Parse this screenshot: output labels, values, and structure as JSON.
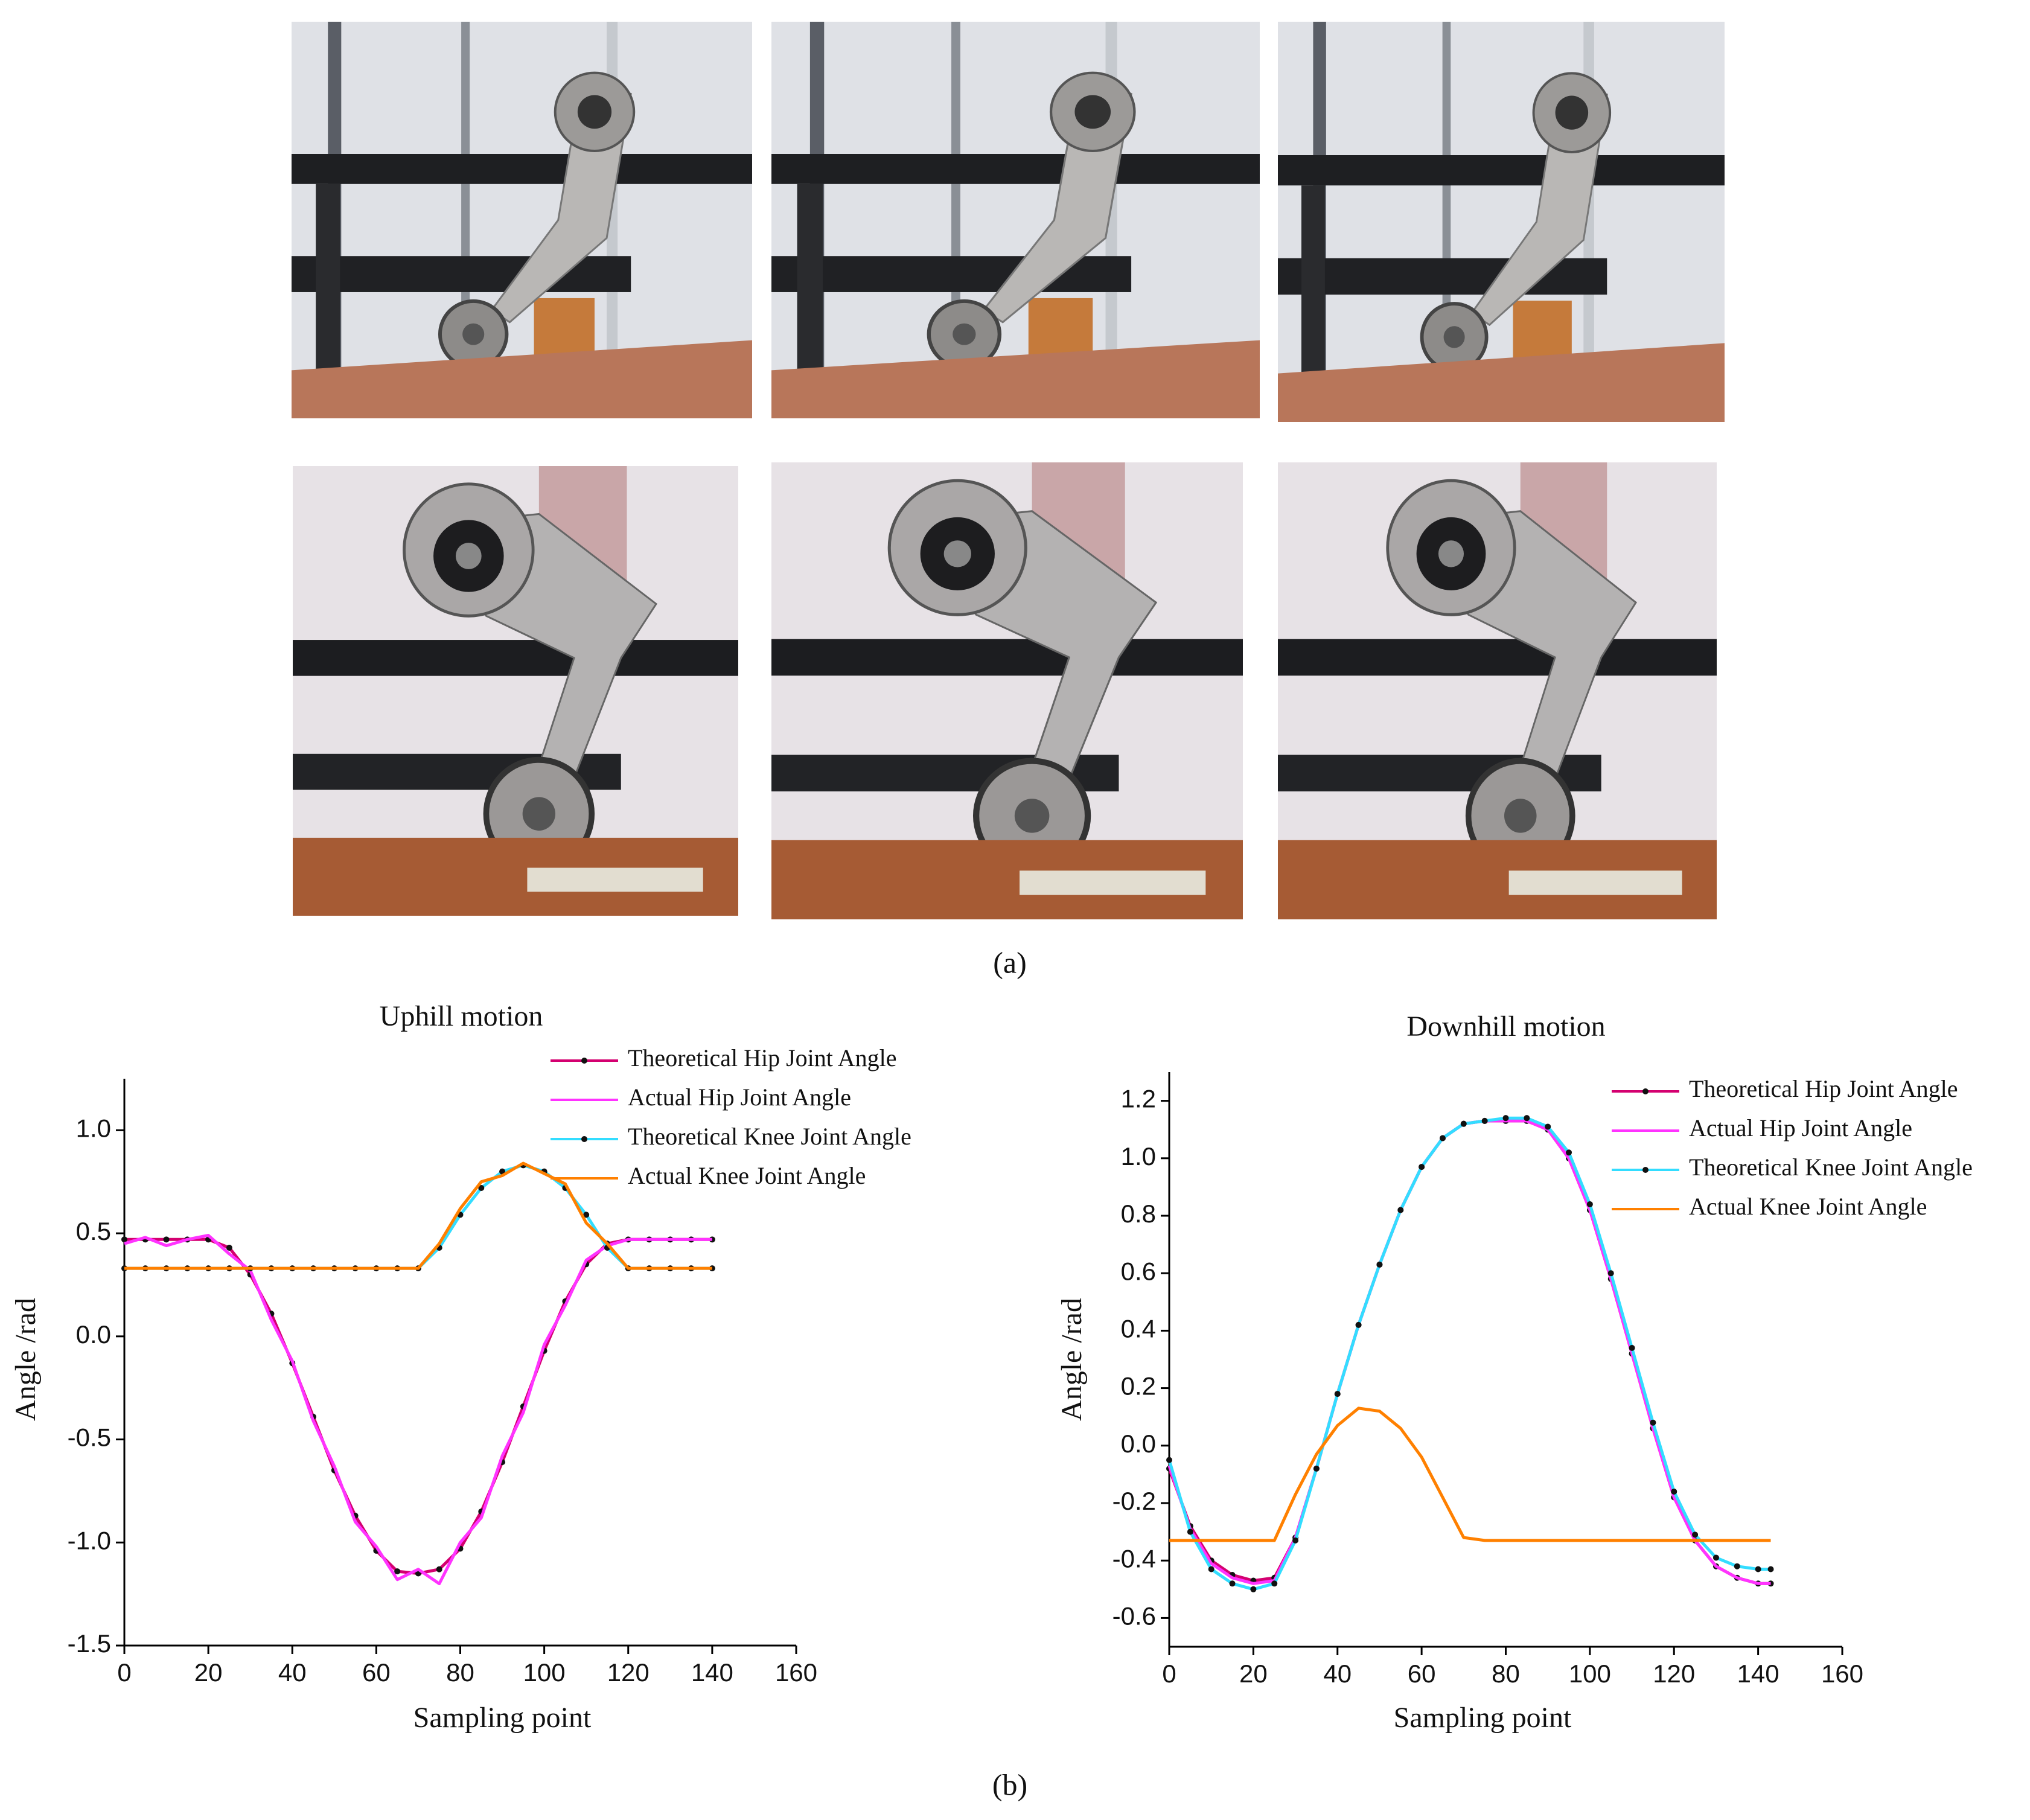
{
  "figure": {
    "label_a": "(a)",
    "label_b": "(b)"
  },
  "chart_data": [
    {
      "type": "line",
      "title": "Uphill motion",
      "x_label": "Sampling point",
      "y_label": "Angle /rad",
      "xlim": [
        0,
        160
      ],
      "xticks": [
        0,
        20,
        40,
        60,
        80,
        100,
        120,
        140,
        160
      ],
      "ylim": [
        -1.5,
        1.25
      ],
      "yticks": [
        -1.5,
        {
          "value": -1,
          "label": "-1.0"
        },
        -0.5,
        {
          "value": 0,
          "label": "0.0"
        },
        0.5,
        {
          "value": 1,
          "label": "1.0"
        }
      ],
      "grid": false,
      "legend": "upper right",
      "marker_color": "#111111",
      "x": [
        0,
        5,
        10,
        15,
        20,
        25,
        30,
        35,
        40,
        45,
        50,
        55,
        60,
        65,
        70,
        75,
        80,
        85,
        90,
        95,
        100,
        105,
        110,
        115,
        120,
        125,
        130,
        135,
        140
      ],
      "series": [
        {
          "name": "Theoretical Hip Joint Angle",
          "color": "#d40070",
          "marker": "circle",
          "values": [
            0.47,
            0.47,
            0.47,
            0.47,
            0.47,
            0.43,
            0.3,
            0.11,
            -0.13,
            -0.39,
            -0.65,
            -0.87,
            -1.04,
            -1.14,
            -1.15,
            -1.13,
            -1.03,
            -0.85,
            -0.61,
            -0.34,
            -0.07,
            0.17,
            0.35,
            0.45,
            0.47,
            0.47,
            0.47,
            0.47,
            0.47
          ]
        },
        {
          "name": "Actual Hip Joint Angle",
          "color": "#ff33ff",
          "values": [
            0.45,
            0.48,
            0.44,
            0.47,
            0.49,
            0.4,
            0.32,
            0.08,
            -0.12,
            -0.41,
            -0.63,
            -0.9,
            -1.02,
            -1.18,
            -1.13,
            -1.2,
            -1.0,
            -0.88,
            -0.58,
            -0.37,
            -0.04,
            0.15,
            0.37,
            0.44,
            0.47,
            0.47,
            0.47,
            0.47,
            0.47
          ]
        },
        {
          "name": "Theoretical Knee Joint Angle",
          "color": "#33ddff",
          "marker": "circle",
          "values": [
            0.33,
            0.33,
            0.33,
            0.33,
            0.33,
            0.33,
            0.33,
            0.33,
            0.33,
            0.33,
            0.33,
            0.33,
            0.33,
            0.33,
            0.33,
            0.43,
            0.59,
            0.72,
            0.8,
            0.83,
            0.8,
            0.72,
            0.59,
            0.43,
            0.33,
            0.33,
            0.33,
            0.33,
            0.33
          ]
        },
        {
          "name": "Actual Knee Joint Angle",
          "color": "#ff8000",
          "values": [
            0.33,
            0.33,
            0.33,
            0.33,
            0.33,
            0.33,
            0.33,
            0.33,
            0.33,
            0.33,
            0.33,
            0.33,
            0.33,
            0.33,
            0.33,
            0.45,
            0.62,
            0.75,
            0.78,
            0.84,
            0.79,
            0.74,
            0.55,
            0.45,
            0.33,
            0.33,
            0.33,
            0.33,
            0.33
          ]
        }
      ]
    },
    {
      "type": "line",
      "title": "Downhill motion",
      "x_label": "Sampling point",
      "y_label": "Angle /rad",
      "xlim": [
        0,
        160
      ],
      "xticks": [
        0,
        20,
        40,
        60,
        80,
        100,
        120,
        140,
        160
      ],
      "ylim": [
        -0.7,
        1.3
      ],
      "yticks": [
        -0.6,
        -0.4,
        -0.2,
        {
          "value": 0,
          "label": "0.0"
        },
        0.2,
        0.4,
        0.6,
        0.8,
        {
          "value": 1,
          "label": "1.0"
        },
        1.2
      ],
      "grid": false,
      "legend": "upper right",
      "marker_color": "#111111",
      "x": [
        0,
        5,
        10,
        15,
        20,
        25,
        30,
        35,
        40,
        45,
        50,
        55,
        60,
        65,
        70,
        75,
        80,
        85,
        90,
        95,
        100,
        105,
        110,
        115,
        120,
        125,
        130,
        135,
        140,
        143
      ],
      "series": [
        {
          "name": "Theoretical Hip Joint Angle",
          "color": "#d40070",
          "marker": "circle",
          "values": [
            -0.08,
            -0.28,
            -0.4,
            -0.45,
            -0.47,
            -0.46,
            -0.32,
            -0.08,
            0.18,
            0.42,
            0.63,
            0.82,
            0.97,
            1.07,
            1.12,
            1.13,
            1.13,
            1.13,
            1.1,
            1.0,
            0.82,
            0.58,
            0.32,
            0.06,
            -0.18,
            -0.33,
            -0.42,
            -0.46,
            -0.48,
            -0.48
          ]
        },
        {
          "name": "Actual Hip Joint Angle",
          "color": "#ff33ff",
          "values": [
            -0.07,
            -0.29,
            -0.41,
            -0.46,
            -0.48,
            -0.47,
            -0.32,
            -0.08,
            0.18,
            0.42,
            0.63,
            0.82,
            0.97,
            1.07,
            1.12,
            1.13,
            1.13,
            1.13,
            1.1,
            1.0,
            0.82,
            0.58,
            0.32,
            0.06,
            -0.18,
            -0.33,
            -0.42,
            -0.46,
            -0.48,
            -0.48
          ]
        },
        {
          "name": "Theoretical Knee Joint Angle",
          "color": "#33ddff",
          "marker": "circle",
          "values": [
            -0.05,
            -0.3,
            -0.43,
            -0.48,
            -0.5,
            -0.48,
            -0.33,
            -0.08,
            0.18,
            0.42,
            0.63,
            0.82,
            0.97,
            1.07,
            1.12,
            1.13,
            1.14,
            1.14,
            1.11,
            1.02,
            0.84,
            0.6,
            0.34,
            0.08,
            -0.16,
            -0.31,
            -0.39,
            -0.42,
            -0.43,
            -0.43
          ]
        },
        {
          "name": "Actual Knee Joint Angle",
          "color": "#ff8000",
          "values": [
            -0.33,
            -0.33,
            -0.33,
            -0.33,
            -0.33,
            -0.33,
            -0.17,
            -0.03,
            0.07,
            0.13,
            0.12,
            0.06,
            -0.04,
            -0.18,
            -0.32,
            -0.33,
            -0.33,
            -0.33,
            -0.33,
            -0.33,
            -0.33,
            -0.33,
            -0.33,
            -0.33,
            -0.33,
            -0.33,
            -0.33,
            -0.33,
            -0.33,
            -0.33
          ]
        }
      ]
    }
  ]
}
